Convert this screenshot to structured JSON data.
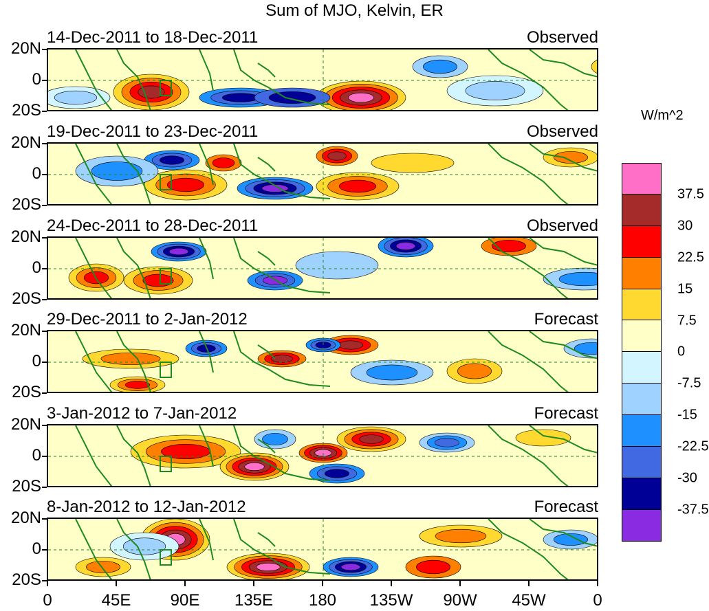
{
  "title": "Sum of MJO, Kelvin, ER",
  "panels": [
    {
      "date_range": "14-Dec-2011 to 18-Dec-2011",
      "kind": "Observed"
    },
    {
      "date_range": "19-Dec-2011 to 23-Dec-2011",
      "kind": "Observed"
    },
    {
      "date_range": "24-Dec-2011 to 28-Dec-2011",
      "kind": "Observed"
    },
    {
      "date_range": "29-Dec-2011 to 2-Jan-2012",
      "kind": "Forecast"
    },
    {
      "date_range": "3-Jan-2012 to 7-Jan-2012",
      "kind": "Forecast"
    },
    {
      "date_range": "8-Jan-2012 to 12-Jan-2012",
      "kind": "Forecast"
    }
  ],
  "lat_labels": [
    "20N",
    "0",
    "20S"
  ],
  "lon_labels": [
    "0",
    "45E",
    "90E",
    "135E",
    "180",
    "135W",
    "90W",
    "45W",
    "0"
  ],
  "colorbar": {
    "units": "W/m^2",
    "colors": [
      "#ff6ec7",
      "#a52a2a",
      "#ff0000",
      "#ff7f00",
      "#ffd92f",
      "#ffffc8",
      "#d2f5ff",
      "#a0d2ff",
      "#1e90ff",
      "#4169e1",
      "#000096",
      "#8a2be2"
    ],
    "labels": [
      "37.5",
      "30",
      "22.5",
      "15",
      "7.5",
      "0",
      "-7.5",
      "-15",
      "-22.5",
      "-30",
      "-37.5"
    ]
  }
}
